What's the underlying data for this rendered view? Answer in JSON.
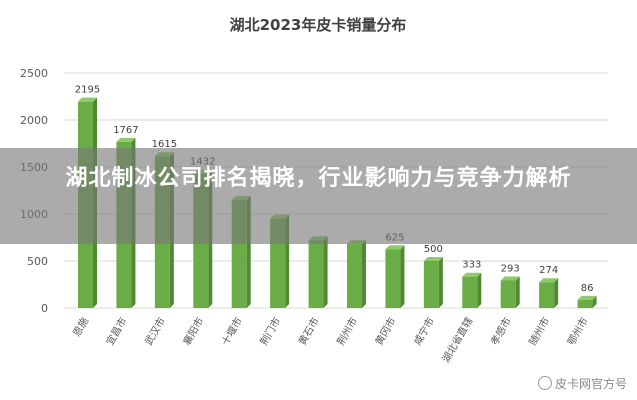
{
  "chart_data": {
    "type": "bar",
    "title": "湖北2023年皮卡销量分布",
    "categories": [
      "恩施",
      "宜昌市",
      "武汉市",
      "襄阳市",
      "十堰市",
      "荆门市",
      "黄石市",
      "荆州市",
      "黄冈市",
      "咸宁市",
      "湖北省直辖",
      "孝感市",
      "随州市",
      "鄂州市"
    ],
    "values": [
      2195,
      1767,
      1615,
      1432,
      1150,
      950,
      720,
      680,
      625,
      500,
      333,
      293,
      274,
      86
    ],
    "data_labels": [
      "2195",
      "1767",
      "1615",
      "1432",
      "",
      "",
      "",
      "",
      "625",
      "500",
      "333",
      "293",
      "274",
      "86"
    ],
    "ylim": [
      0,
      2500
    ],
    "yticks": [
      "0",
      "500",
      "1000",
      "1500",
      "2000",
      "2500"
    ],
    "grid": true,
    "bar_color": "#6aac46"
  },
  "banner": {
    "title": "湖北制冰公司排名揭晓，行业影响力与竞争力解析"
  },
  "watermark": {
    "text": "皮卡网官方号"
  }
}
